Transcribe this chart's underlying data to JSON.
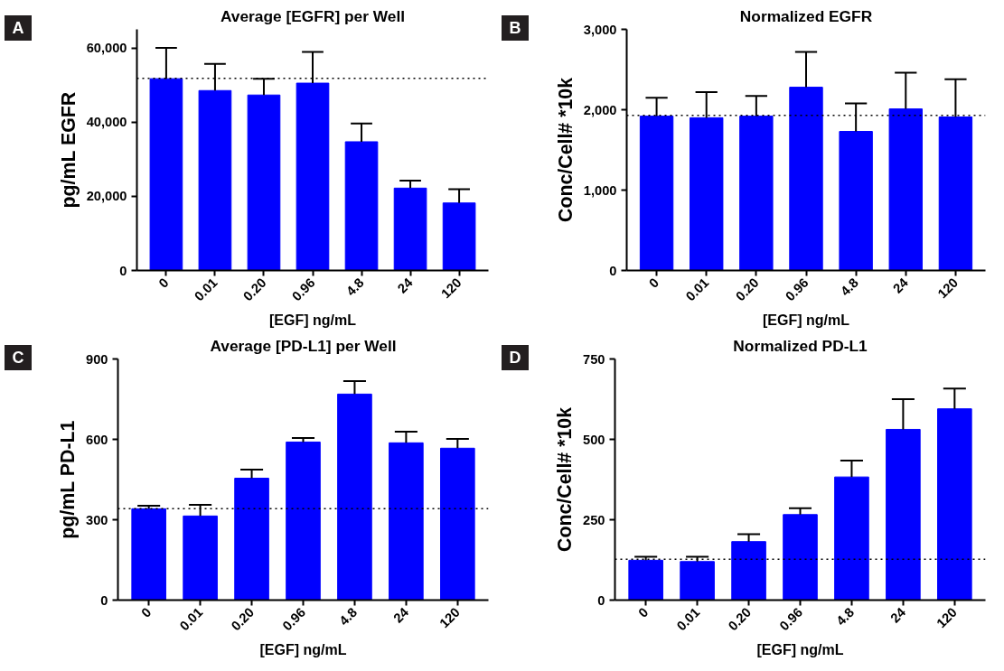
{
  "chart_data": [
    {
      "type": "bar",
      "title": "Average [EGFR] per Well",
      "xlabel": "[EGF] ng/mL",
      "ylabel": "pg/mL EGFR",
      "annotations": [
        "A"
      ],
      "categories": [
        "0",
        "0.01",
        "0.20",
        "0.96",
        "4.8",
        "24",
        "120"
      ],
      "color": "#0000ff",
      "values": [
        51700,
        48500,
        47300,
        50500,
        34700,
        22200,
        18200
      ],
      "errors": [
        [
          51700,
          60000
        ],
        [
          48500,
          55700
        ],
        [
          47300,
          51700
        ],
        [
          50500,
          58900
        ],
        [
          34700,
          39600
        ],
        [
          22200,
          24200
        ],
        [
          18200,
          21900
        ]
      ],
      "ylim": [
        0,
        65000
      ],
      "yticks": [
        0,
        {
          "value": 20000,
          "label": "20,000"
        },
        {
          "value": 40000,
          "label": "40,000"
        },
        {
          "value": 60000,
          "label": "60,000"
        }
      ],
      "ref_lines": [
        {
          "axis": "y",
          "value": 51800,
          "line_style": "dotted"
        }
      ],
      "grid": false
    },
    {
      "type": "bar",
      "title": "Normalized EGFR",
      "xlabel": "[EGF] ng/mL",
      "ylabel": "Conc/Cell# *10k",
      "annotations": [
        "B"
      ],
      "categories": [
        "0",
        "0.01",
        "0.20",
        "0.96",
        "4.8",
        "24",
        "120"
      ],
      "color": "#0000ff",
      "values": [
        1920,
        1900,
        1920,
        2280,
        1730,
        2010,
        1910
      ],
      "errors": [
        [
          1920,
          2150
        ],
        [
          1900,
          2220
        ],
        [
          1920,
          2170
        ],
        [
          2280,
          2720
        ],
        [
          1730,
          2080
        ],
        [
          2010,
          2460
        ],
        [
          1910,
          2380
        ]
      ],
      "ylim": [
        0,
        3000
      ],
      "yticks": [
        0,
        {
          "value": 1000,
          "label": "1,000"
        },
        {
          "value": 2000,
          "label": "2,000"
        },
        {
          "value": 3000,
          "label": "3,000"
        }
      ],
      "ref_lines": [
        {
          "axis": "y",
          "value": 1930,
          "line_style": "dotted"
        }
      ],
      "grid": false
    },
    {
      "type": "bar",
      "title": "Average [PD-L1] per Well",
      "xlabel": "[EGF] ng/mL",
      "ylabel": "pg/mL PD-L1",
      "annotations": [
        "C"
      ],
      "categories": [
        "0",
        "0.01",
        "0.20",
        "0.96",
        "4.8",
        "24",
        "120"
      ],
      "color": "#0000ff",
      "values": [
        341,
        314,
        455,
        590,
        769,
        587,
        567
      ],
      "errors": [
        [
          341,
          352
        ],
        [
          314,
          356
        ],
        [
          455,
          487
        ],
        [
          590,
          605
        ],
        [
          769,
          817
        ],
        [
          587,
          629
        ],
        [
          567,
          602
        ]
      ],
      "ylim": [
        0,
        900
      ],
      "yticks": [
        0,
        300,
        600,
        900
      ],
      "ref_lines": [
        {
          "axis": "y",
          "value": 341,
          "line_style": "dotted"
        }
      ],
      "grid": false
    },
    {
      "type": "bar",
      "title": "Normalized PD-L1",
      "xlabel": "[EGF] ng/mL",
      "ylabel": "Conc/Cell# *10k",
      "annotations": [
        "D"
      ],
      "categories": [
        "0",
        "0.01",
        "0.20",
        "0.96",
        "4.8",
        "24",
        "120"
      ],
      "color": "#0000ff",
      "values": [
        124,
        120,
        182,
        266,
        383,
        531,
        595
      ],
      "errors": [
        [
          124,
          135
        ],
        [
          120,
          135
        ],
        [
          182,
          205
        ],
        [
          266,
          286
        ],
        [
          383,
          434
        ],
        [
          531,
          625
        ],
        [
          595,
          658
        ]
      ],
      "ylim": [
        0,
        750
      ],
      "yticks": [
        0,
        250,
        500,
        750
      ],
      "ref_lines": [
        {
          "axis": "y",
          "value": 127,
          "line_style": "dotted"
        }
      ],
      "grid": false
    }
  ]
}
